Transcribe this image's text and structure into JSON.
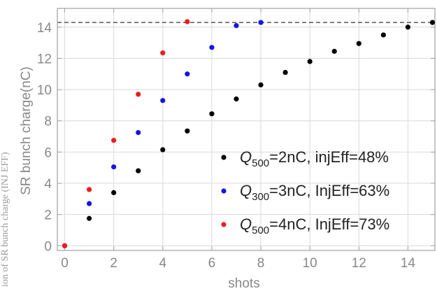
{
  "chart_data": {
    "type": "scatter",
    "xlabel": "shots",
    "ylabel": "SR bunch charge(nC)",
    "xlim": [
      -0.3,
      15.1
    ],
    "ylim": [
      -0.3,
      15.2
    ],
    "x_ticks": [
      0,
      2,
      4,
      6,
      8,
      10,
      12,
      14
    ],
    "y_ticks": [
      0,
      2,
      4,
      6,
      8,
      10,
      12,
      14
    ],
    "grid": true,
    "legend_position": "bottom-right",
    "reference_line": {
      "y": 14.3,
      "style": "dashed"
    },
    "series": [
      {
        "name_main": "Q",
        "name_sub": "500",
        "name_rest": "=2nC, injEff=48%",
        "color": "#000000",
        "x": [
          0,
          1,
          2,
          3,
          4,
          5,
          6,
          7,
          8,
          9,
          10,
          11,
          12,
          13,
          14,
          15
        ],
        "y": [
          0,
          1.75,
          3.4,
          4.8,
          6.15,
          7.35,
          8.45,
          9.4,
          10.3,
          11.1,
          11.8,
          12.45,
          12.95,
          13.5,
          14.0,
          14.3
        ]
      },
      {
        "name_main": "Q",
        "name_sub": "300",
        "name_rest": "=3nC, InjEff=63%",
        "color": "#1414e6",
        "x": [
          0,
          1,
          2,
          3,
          4,
          5,
          6,
          7,
          8
        ],
        "y": [
          0,
          2.7,
          5.05,
          7.25,
          9.3,
          11.0,
          12.7,
          14.1,
          14.3
        ]
      },
      {
        "name_main": "Q",
        "name_sub": "500",
        "name_rest": "=4nC, InjEff=73%",
        "color": "#ee1c1c",
        "x": [
          0,
          1,
          2,
          3,
          4,
          5
        ],
        "y": [
          0,
          3.6,
          6.75,
          9.7,
          12.35,
          14.35
        ]
      }
    ]
  },
  "cropped_left_text": "ion of SR bunch charge (INJ EFF)"
}
